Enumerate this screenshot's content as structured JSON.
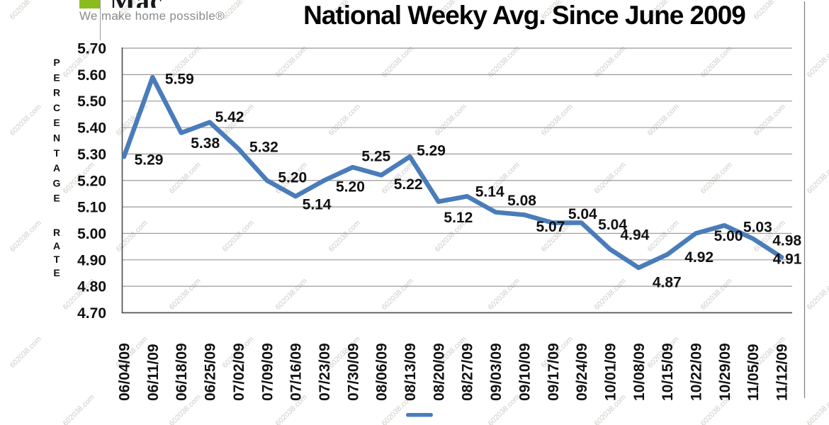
{
  "header": {
    "logo": {
      "mac_text": "Mac",
      "tagline": "We make home possible®"
    },
    "title": "National Weeky Avg. Since June 2009"
  },
  "watermark": {
    "text": "602038.com"
  },
  "chart_data": {
    "type": "line",
    "title": "National Weeky Avg. Since June 2009",
    "xlabel": "",
    "ylabel": "PERCENTAGE RATE",
    "ylabel_word1": "PERCENTAGE",
    "ylabel_word2": "RATE",
    "categories": [
      "06/04/09",
      "06/11/09",
      "06/18/09",
      "06/25/09",
      "07/02/09",
      "07/09/09",
      "07/16/09",
      "07/23/09",
      "07/30/09",
      "08/06/09",
      "08/13/09",
      "08/20/09",
      "08/27/09",
      "09/03/09",
      "09/10/09",
      "09/17/09",
      "09/24/09",
      "10/01/09",
      "10/08/09",
      "10/15/09",
      "10/22/09",
      "10/29/09",
      "11/05/09",
      "11/12/09"
    ],
    "values": [
      5.29,
      5.59,
      5.38,
      5.42,
      5.32,
      5.2,
      5.14,
      5.2,
      5.25,
      5.22,
      5.29,
      5.12,
      5.14,
      5.08,
      5.07,
      5.04,
      5.04,
      4.94,
      4.87,
      4.92,
      5.0,
      5.03,
      4.98,
      4.91
    ],
    "y_ticks": [
      "5.70",
      "5.60",
      "5.50",
      "5.40",
      "5.30",
      "5.20",
      "5.10",
      "5.00",
      "4.90",
      "4.80",
      "4.70"
    ],
    "ylim": [
      4.7,
      5.7
    ],
    "grid": true,
    "data_labels": true,
    "legend_position": "bottom",
    "line_color": "#4a7cba",
    "gridline_color": "#999999",
    "axis_color": "#555555"
  }
}
